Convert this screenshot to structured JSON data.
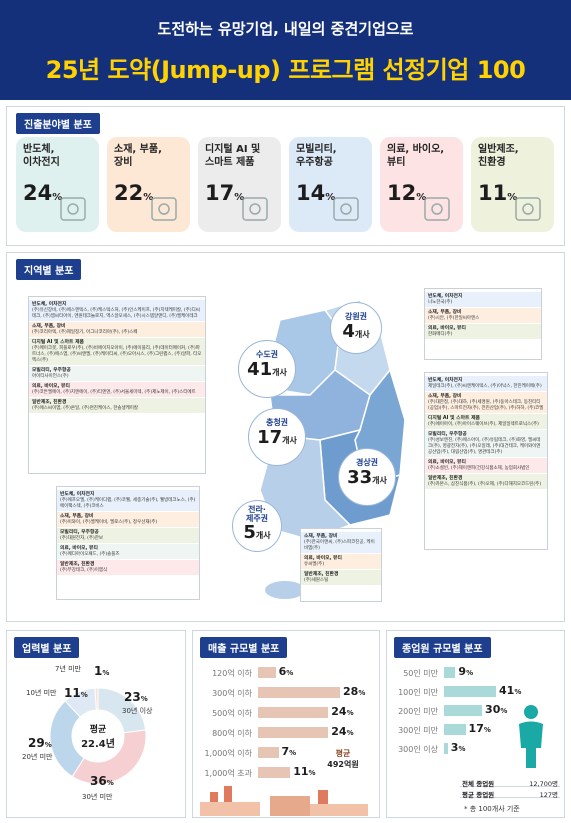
{
  "header": {
    "subtitle": "도전하는 유망기업, 내일의 중견기업으로",
    "title": "25년 도약(Jump-up) 프로그램 선정기업 100"
  },
  "sections": {
    "industry": "진출분야별 분포",
    "region": "지역별 분포",
    "age": "업력별 분포",
    "sales": "매출 규모별 분포",
    "employees": "종업원 규모별 분포"
  },
  "colors": {
    "navy": "#14307a",
    "accent_yellow": "#ffd200",
    "bar_brown": "#e6c5b4",
    "bar_teal": "#a9dad9"
  },
  "industry_cards": [
    {
      "label1": "반도체,",
      "label2": "이차전지",
      "value": "24",
      "unit": "%",
      "bg": "#dff1ee",
      "icon": "cpu-chip-icon"
    },
    {
      "label1": "소재, 부품,",
      "label2": "장비",
      "value": "22",
      "unit": "%",
      "bg": "#fde8d6",
      "icon": "robot-arm-icon"
    },
    {
      "label1": "디지털 AI 및",
      "label2": "스마트 제품",
      "value": "17",
      "unit": "%",
      "bg": "#ececec",
      "icon": "ai-brain-icon"
    },
    {
      "label1": "모빌리티,",
      "label2": "우주항공",
      "value": "14",
      "unit": "%",
      "bg": "#dceaf8",
      "icon": "rocket-icon"
    },
    {
      "label1": "의료, 바이오,",
      "label2": "뷰티",
      "value": "12",
      "unit": "%",
      "bg": "#fde3e3",
      "icon": "dna-icon"
    },
    {
      "label1": "일반제조,",
      "label2": "친환경",
      "value": "11",
      "unit": "%",
      "bg": "#eef2dc",
      "icon": "factory-leaf-icon"
    }
  ],
  "regions": {
    "sudo": {
      "name": "수도권",
      "value": "41",
      "unit": "개사"
    },
    "gangwon": {
      "name": "강원권",
      "value": "4",
      "unit": "개사"
    },
    "chungcheong": {
      "name": "충청권",
      "value": "17",
      "unit": "개사"
    },
    "gyeongsang": {
      "name": "경상권",
      "value": "33",
      "unit": "개사"
    },
    "jeolla": {
      "name1": "전라·",
      "name2": "제주권",
      "value": "5",
      "unit": "개사"
    }
  },
  "region_lists": {
    "sudo": [
      {
        "h": "반도체, 이차전지",
        "t": "(주)유신장비, (주)에스엔텍스, (주)케스텍스처, (주)인스케이프, (주)지텍케미칼, (주)디씨테크, (주)엠씨티아이, 엔원테크놀로지, 엑스알모세스, (주)시스템알앤디, (주)엘케이테크"
      },
      {
        "h": "소재, 부품, 장비",
        "t": "(주)코리아텍, (주)제일정기, 아그나코리아(주), (주)스페"
      },
      {
        "h": "디지털 AI 및 스마트 제품",
        "t": "(주)메이크봇, 피플로우(주), (주)비에이치오아이, (주)에이블리, (주)데이터메이커, (주)파트너스, (주)에스엠, (주)씨앤엘, (주)케이티씨, (주)오아시스, (주)그린랩스, (주)알파, 티오엑스(주)"
      },
      {
        "h": "모빌리티, 우주항공",
        "t": "아이티사이언스(주)"
      },
      {
        "h": "의료, 바이오, 뷰티",
        "t": "(주)코튼엘에이, (주)지엔에이, (주)티엔엔, (주)서울세미텍, (주)제노제이, (주)스티에트"
      },
      {
        "h": "일반제조, 친환경",
        "t": "(주)에스씨이엠, (주)온일, (주)천진케이스, 한솔생케미칼"
      }
    ],
    "gangwon": [
      {
        "h": "반도체, 이차전지",
        "t": "나노한국(주)"
      },
      {
        "h": "소재, 부품, 장비",
        "t": "(주)시안, (주)한일씨아엔스"
      },
      {
        "h": "의료, 바이오, 뷰티",
        "t": "한화메디(주)"
      }
    ],
    "gyeongsang": [
      {
        "h": "반도체, 이차전지",
        "t": "제일테크(주), (주)씨엔케이텍스, (주)아낙스, 한진케이메(주)"
      },
      {
        "h": "소재, 부품, 장비",
        "t": "(주)대한정, (주)대하, (주)세명원, (주)동아스테크, 동진티티(공업)(주), 스마트전자(주), 전진산업(주), (주)하하, (주)코엘"
      },
      {
        "h": "디지털 AI 및 스마트 제품",
        "t": "(주)에이아이, (주)아이스웨이브(주), 제일일렉트로닉스(주)"
      },
      {
        "h": "모빌리티, 우주항공",
        "t": "(주)성보엔진, (주)에스아이, (주)유림테크, (주)화영, 엘씨테크(주), 영광전자(주), (주)오일래, (주)대건테크, 케이와이엔공산업(주), 대림산업(주), 명관테크(주)"
      },
      {
        "h": "의료, 바이오, 뷰티",
        "t": "(주)소셜빈, (주)제이앤피(건강식품소제, 농업회사법인"
      },
      {
        "h": "일반제조, 친환경",
        "t": "(주)카본스, 삼진식품(주), (주)오제, (주)다해지오코드린(주)"
      }
    ],
    "chungcheong": [
      {
        "h": "반도체, 이차전지",
        "t": "(주)에프오엘, (주)케이디랩, (주)코웰, 세종기술(주), 웰빙테크노스, (주)에이팩스텍, (주)코비스"
      },
      {
        "h": "소재, 부품, 장비",
        "t": "(주)이와이, (주)엘케이비, 엘로스(주), 정우선재(주)"
      },
      {
        "h": "모빌리티, 우주항공",
        "t": "(주)대원전자, (주)한보"
      },
      {
        "h": "의료, 바이오, 뷰티",
        "t": "(주)메디아이오패드, (주)솔플즈"
      },
      {
        "h": "일반제조, 친환경",
        "t": "(주)부강테크, (주)이엠식"
      }
    ],
    "jeolla": [
      {
        "h": "소재, 부품, 장비",
        "t": "(주)한국이앤씨, (주)스파코진공, 케이비엠(주)"
      },
      {
        "h": "의료, 바이오, 뷰티",
        "t": "유씨엘(주)"
      },
      {
        "h": "일반제조, 친환경",
        "t": "(주)세원스틸"
      }
    ]
  },
  "age": {
    "avg_label": "평균",
    "avg_value": "22.4년",
    "labels": [
      "7년 미만",
      "10년 미만",
      "20년 미만",
      "30년 미만",
      "30년 이상"
    ]
  },
  "sales": {
    "avg_label": "평균",
    "avg_value": "492억원",
    "labels": [
      "120억 이하",
      "300억 이하",
      "500억 이하",
      "800억 이하",
      "1,000억 이하",
      "1,000억 초과"
    ]
  },
  "employees": {
    "labels": [
      "50인 미만",
      "100인 미만",
      "200인 미만",
      "300인 미만",
      "300인 이상"
    ],
    "table": [
      {
        "k": "전체 종업원",
        "v": "12,700명"
      },
      {
        "k": "평균 종업원",
        "v": "127명"
      }
    ],
    "note": "* 총 100개사 기준"
  },
  "chart_data": [
    {
      "type": "bar",
      "title": "진출분야별 분포",
      "categories": [
        "반도체, 이차전지",
        "소재, 부품, 장비",
        "디지털 AI 및 스마트 제품",
        "모빌리티, 우주항공",
        "의료, 바이오, 뷰티",
        "일반제조, 친환경"
      ],
      "values": [
        24,
        22,
        17,
        14,
        12,
        11
      ],
      "unit": "%"
    },
    {
      "type": "bar",
      "title": "지역별 분포",
      "categories": [
        "수도권",
        "강원권",
        "충청권",
        "경상권",
        "전라·제주권"
      ],
      "values": [
        41,
        4,
        17,
        33,
        5
      ],
      "unit": "개사"
    },
    {
      "type": "pie",
      "title": "업력별 분포",
      "categories": [
        "7년 미만",
        "10년 미만",
        "20년 미만",
        "30년 미만",
        "30년 이상"
      ],
      "values": [
        1,
        11,
        29,
        36,
        23
      ],
      "unit": "%"
    },
    {
      "type": "bar",
      "title": "매출 규모별 분포",
      "categories": [
        "120억 이하",
        "300억 이하",
        "500억 이하",
        "800억 이하",
        "1,000억 이하",
        "1,000억 초과"
      ],
      "values": [
        6,
        28,
        24,
        24,
        7,
        11
      ],
      "unit": "%"
    },
    {
      "type": "bar",
      "title": "종업원 규모별 분포",
      "categories": [
        "50인 미만",
        "100인 미만",
        "200인 미만",
        "300인 미만",
        "300인 이상"
      ],
      "values": [
        9,
        41,
        30,
        17,
        3
      ],
      "unit": "%"
    }
  ]
}
